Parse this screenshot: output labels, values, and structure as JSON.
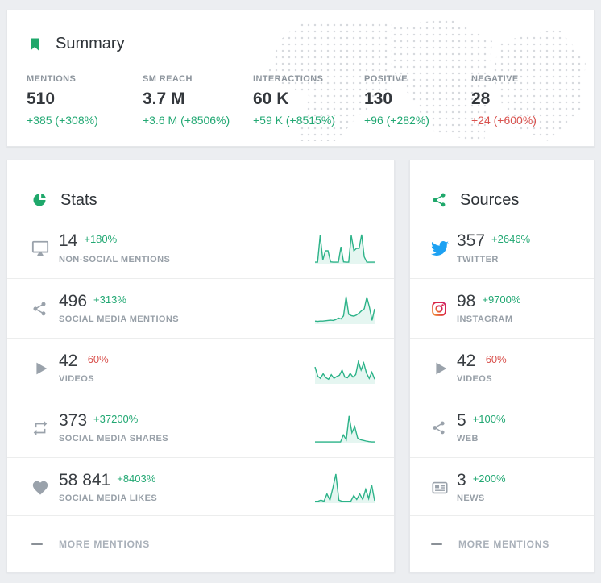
{
  "colors": {
    "green": "#22a873",
    "red": "#d9534f",
    "spark": "#2db389",
    "icon_gray": "#9aa2ab",
    "header_icon_green": "#1fa86b",
    "twitter_blue": "#1da1f2",
    "instagram_red": "#e2403a",
    "dark_text": "#33373c",
    "label_gray": "#8d959d"
  },
  "summary": {
    "title": "Summary",
    "metrics": [
      {
        "label": "MENTIONS",
        "value": "510",
        "change": "+385 (+308%)",
        "trend": "up"
      },
      {
        "label": "SM REACH",
        "value": "3.7 M",
        "change": "+3.6 M (+8506%)",
        "trend": "up"
      },
      {
        "label": "INTERACTIONS",
        "value": "60 K",
        "change": "+59 K (+8515%)",
        "trend": "up"
      },
      {
        "label": "POSITIVE",
        "value": "130",
        "change": "+96 (+282%)",
        "trend": "up"
      },
      {
        "label": "NEGATIVE",
        "value": "28",
        "change": "+24 (+600%)",
        "trend": "down"
      }
    ]
  },
  "stats": {
    "title": "Stats",
    "footer": "MORE MENTIONS",
    "rows": [
      {
        "icon": "monitor-icon",
        "value": "14",
        "change": "+180%",
        "trend": "up",
        "label": "NON-SOCIAL MENTIONS",
        "spark": [
          0.05,
          0.05,
          0.92,
          0.12,
          0.42,
          0.42,
          0.06,
          0.05,
          0.05,
          0.05,
          0.55,
          0.06,
          0.05,
          0.05,
          0.92,
          0.42,
          0.5,
          0.5,
          0.95,
          0.22,
          0.05,
          0.05,
          0.05,
          0.05
        ]
      },
      {
        "icon": "share-icon",
        "value": "496",
        "change": "+313%",
        "trend": "up",
        "label": "SOCIAL MEDIA MENTIONS",
        "spark": [
          0.1,
          0.09,
          0.1,
          0.1,
          0.11,
          0.12,
          0.13,
          0.12,
          0.15,
          0.2,
          0.17,
          0.27,
          0.9,
          0.32,
          0.28,
          0.26,
          0.3,
          0.36,
          0.44,
          0.5,
          0.88,
          0.55,
          0.12,
          0.5
        ]
      },
      {
        "icon": "play-icon",
        "value": "42",
        "change": "-60%",
        "trend": "down",
        "label": "VIDEOS",
        "spark": [
          0.55,
          0.25,
          0.18,
          0.33,
          0.2,
          0.15,
          0.3,
          0.18,
          0.24,
          0.28,
          0.45,
          0.22,
          0.2,
          0.34,
          0.22,
          0.3,
          0.72,
          0.45,
          0.68,
          0.35,
          0.18,
          0.38,
          0.15
        ]
      },
      {
        "icon": "retweet-icon",
        "value": "373",
        "change": "+37200%",
        "trend": "up",
        "label": "SOCIAL MEDIA SHARES",
        "spark": [
          0.05,
          0.05,
          0.05,
          0.05,
          0.05,
          0.05,
          0.05,
          0.05,
          0.05,
          0.05,
          0.28,
          0.12,
          0.9,
          0.35,
          0.55,
          0.18,
          0.12,
          0.1,
          0.08,
          0.06,
          0.05,
          0.05
        ]
      },
      {
        "icon": "heart-icon",
        "value": "58 841",
        "change": "+8403%",
        "trend": "up",
        "label": "SOCIAL MEDIA LIKES",
        "spark": [
          0.06,
          0.06,
          0.1,
          0.06,
          0.3,
          0.1,
          0.5,
          0.95,
          0.1,
          0.06,
          0.06,
          0.06,
          0.06,
          0.25,
          0.12,
          0.3,
          0.12,
          0.45,
          0.15,
          0.6,
          0.08
        ]
      }
    ]
  },
  "sources": {
    "title": "Sources",
    "footer": "MORE MENTIONS",
    "rows": [
      {
        "icon": "twitter-icon",
        "value": "357",
        "change": "+2646%",
        "trend": "up",
        "label": "TWITTER"
      },
      {
        "icon": "instagram-icon",
        "value": "98",
        "change": "+9700%",
        "trend": "up",
        "label": "INSTAGRAM"
      },
      {
        "icon": "play-icon",
        "value": "42",
        "change": "-60%",
        "trend": "down",
        "label": "VIDEOS"
      },
      {
        "icon": "share-icon",
        "value": "5",
        "change": "+100%",
        "trend": "up",
        "label": "WEB"
      },
      {
        "icon": "news-icon",
        "value": "3",
        "change": "+200%",
        "trend": "up",
        "label": "NEWS"
      }
    ]
  }
}
